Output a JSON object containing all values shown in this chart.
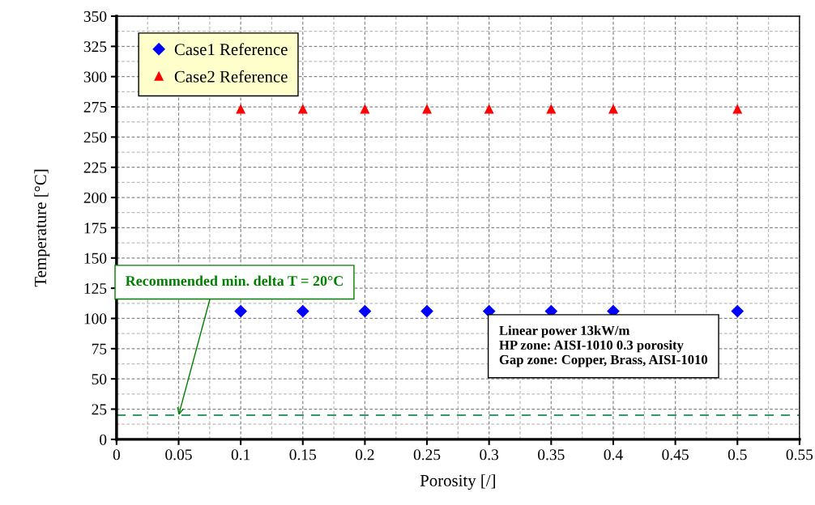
{
  "chart_data": {
    "type": "scatter",
    "xlabel": "Porosity [/]",
    "ylabel": "Temperature [°C]",
    "x": [
      0.1,
      0.15,
      0.2,
      0.25,
      0.3,
      0.35,
      0.4,
      0.5
    ],
    "series": [
      {
        "name": "Case1 Reference",
        "color": "#0000ff",
        "marker": "diamond",
        "values": [
          106,
          106,
          106,
          106,
          106,
          106,
          106,
          106
        ]
      },
      {
        "name": "Case2 Reference",
        "color": "#ff0000",
        "marker": "triangle",
        "values": [
          273,
          273,
          273,
          273,
          273,
          273,
          273,
          273
        ]
      }
    ],
    "xlim": [
      0,
      0.55
    ],
    "xticks": [
      0,
      0.05,
      0.1,
      0.15,
      0.2,
      0.25,
      0.3,
      0.35,
      0.4,
      0.45,
      0.5,
      0.55
    ],
    "ylim": [
      0,
      350
    ],
    "yticks": [
      0,
      25,
      50,
      75,
      100,
      125,
      150,
      175,
      200,
      225,
      250,
      275,
      300,
      325,
      350
    ],
    "ref_lines": [
      {
        "axis": "y",
        "value": 20,
        "color": "#339966",
        "line_style": "dashed"
      }
    ],
    "annotations": [
      {
        "text": "Recommended min. delta T = 20°C",
        "x": 0.05,
        "y": 20
      },
      "Linear power 13kW/m\nHP zone: AISI-1010 0.3 porosity\nGap zone: Copper, Brass, AISI-1010"
    ],
    "grid": true,
    "legend": "top left"
  }
}
